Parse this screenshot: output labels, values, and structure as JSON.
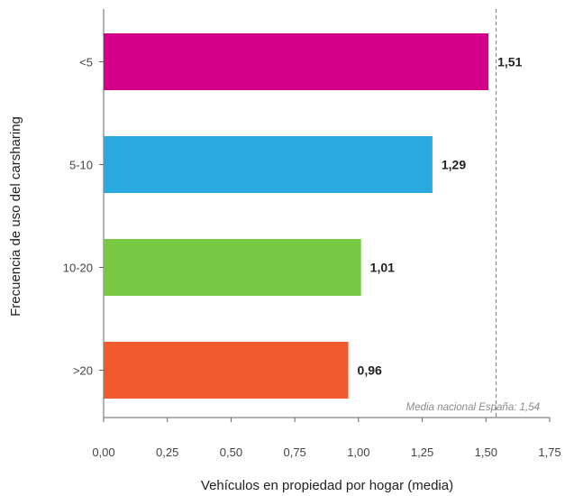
{
  "chart_data": {
    "type": "bar",
    "orientation": "horizontal",
    "categories": [
      "<5",
      "5-10",
      "10-20",
      ">20"
    ],
    "values": [
      1.51,
      1.29,
      1.01,
      0.96
    ],
    "value_labels": [
      "1,51",
      "1,29",
      "1,01",
      "0,96"
    ],
    "colors": [
      "#d4008a",
      "#29a9e0",
      "#78c843",
      "#f15a2c"
    ],
    "xlabel": "Vehículos en propiedad por hogar (media)",
    "ylabel": "Frecuencia de uso del carsharing",
    "xlim": [
      0,
      1.75
    ],
    "x_ticks": [
      0,
      0.25,
      0.5,
      0.75,
      1.0,
      1.25,
      1.5,
      1.75
    ],
    "x_tick_labels": [
      "0,00",
      "0,25",
      "0,50",
      "0,75",
      "1,00",
      "1,25",
      "1,50",
      "1,75"
    ],
    "reference_line": {
      "value": 1.54,
      "label": "Media nacional España: 1,54",
      "style": "dashed"
    },
    "grid": false,
    "legend": "none"
  }
}
